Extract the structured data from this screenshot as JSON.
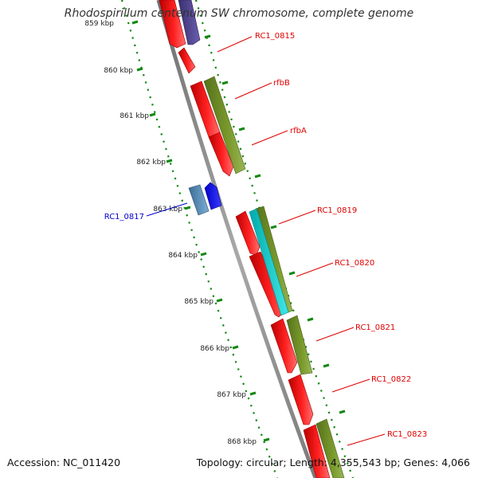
{
  "title": "Rhodospirillum centenum SW chromosome, complete genome",
  "footer": {
    "accession": "Accession: NC_011420",
    "summary": "Topology: circular; Length: 4,355,543 bp; Genes: 4,066"
  },
  "ticks": [
    {
      "label": "859 kbp",
      "kbp": 859
    },
    {
      "label": "860 kbp",
      "kbp": 860
    },
    {
      "label": "861 kbp",
      "kbp": 861
    },
    {
      "label": "862 kbp",
      "kbp": 862
    },
    {
      "label": "863 kbp",
      "kbp": 863
    },
    {
      "label": "864 kbp",
      "kbp": 864
    },
    {
      "label": "865 kbp",
      "kbp": 865
    },
    {
      "label": "866 kbp",
      "kbp": 866
    },
    {
      "label": "867 kbp",
      "kbp": 867
    },
    {
      "label": "868 kbp",
      "kbp": 868
    }
  ],
  "gene_labels": [
    {
      "name": "RC1_0815",
      "color": "#e00000"
    },
    {
      "name": "rfbB",
      "color": "#e00000"
    },
    {
      "name": "rfbA",
      "color": "#e00000"
    },
    {
      "name": "RC1_0817",
      "color": "#0000cc"
    },
    {
      "name": "RC1_0819",
      "color": "#e00000"
    },
    {
      "name": "RC1_0820",
      "color": "#e00000"
    },
    {
      "name": "RC1_0821",
      "color": "#e00000"
    },
    {
      "name": "RC1_0822",
      "color": "#e00000"
    },
    {
      "name": "RC1_0823",
      "color": "#e00000"
    }
  ],
  "colors": {
    "backbone": "#8c8c8c",
    "cds_red": "#ff0000",
    "cds_blue": "#1414ff",
    "steel_blue": "#4682b4",
    "olive": "#6b8e23",
    "cyan": "#00cdcd",
    "purple": "#4b3e8f",
    "tick_green": "#118811"
  }
}
